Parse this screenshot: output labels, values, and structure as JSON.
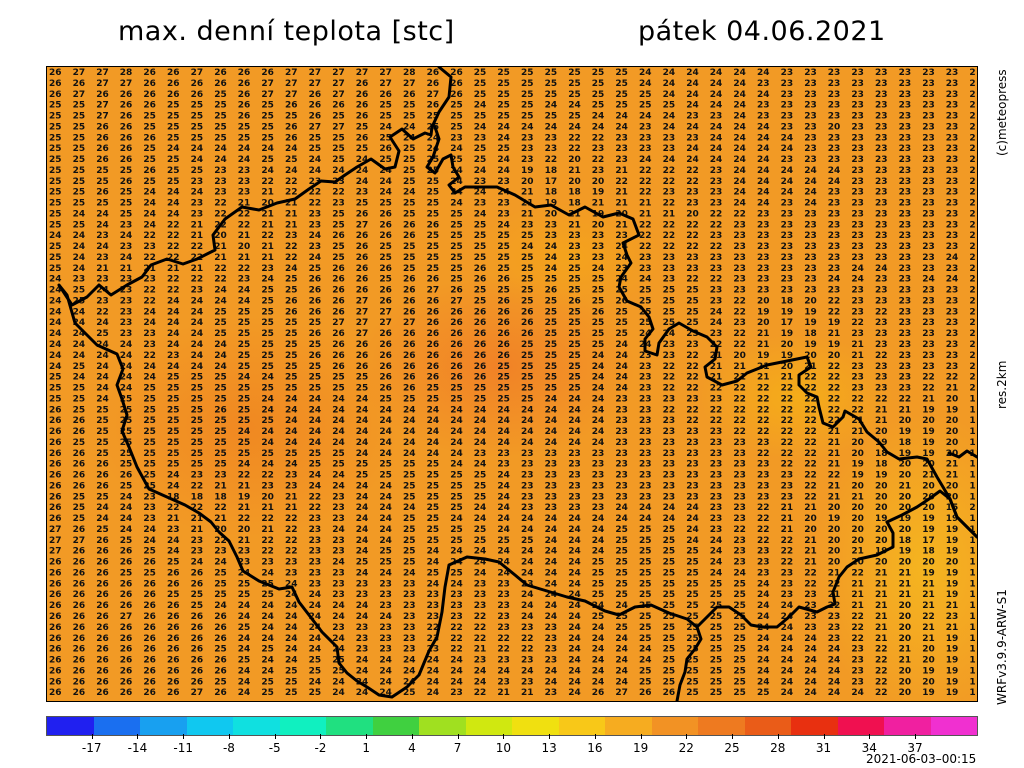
{
  "header": {
    "title": "max. denní teplota [stc]",
    "date": "pátek 04.06.2021"
  },
  "sidebar": {
    "copyright": "(c)meteopress",
    "resolution": "res.2km",
    "model": "WRFv3.9.9-ARW-S1"
  },
  "colorbar": {
    "tick_labels": [
      "-17",
      "-14",
      "-11",
      "-8",
      "-5",
      "-2",
      "1",
      "4",
      "7",
      "10",
      "13",
      "16",
      "19",
      "22",
      "25",
      "28",
      "31",
      "34",
      "37"
    ],
    "tick_values": [
      -17,
      -14,
      -11,
      -8,
      -5,
      -2,
      1,
      4,
      7,
      10,
      13,
      16,
      19,
      22,
      25,
      28,
      31,
      34,
      37
    ],
    "min": -20,
    "max": 41,
    "colors": [
      "#2020f0",
      "#1a6ff0",
      "#18a0f0",
      "#10c8f0",
      "#10e0e0",
      "#10f0c0",
      "#20e080",
      "#40d040",
      "#a0e020",
      "#d0e810",
      "#f0e010",
      "#f8c818",
      "#f6ac20",
      "#f29224",
      "#ee7a20",
      "#ea5c18",
      "#e83010",
      "#f01050",
      "#f020a0",
      "#f030d0"
    ]
  },
  "footer": {
    "timestamp": "2021-06-03–00:15"
  },
  "map": {
    "grid_rows": [
      "26 27 27 28 26 26 27 26 26 26 27 27 27 27 27 28 26 26 25 25 25 25 25 25 25 24 24 24 24 24 24 23 23 23 23 23 23 23 23 2",
      "26 26 27 27 26 26 26 26 26 27 27 27 27 26 27 27 26 26 25 25 25 25 25 25 25 24 24 24 24 24 23 23 23 23 23 23 23 23 23 2",
      "26 27 26 26 26 26 26 25 26 27 27 26 27 26 26 26 27 26 25 25 25 25 25 25 25 25 24 24 24 24 24 23 23 23 23 23 23 23 23 2",
      "25 25 27 26 26 25 25 25 26 25 26 26 26 26 25 25 26 25 24 25 25 24 24 25 25 25 25 24 24 24 23 23 23 23 23 23 23 23 23 2",
      "25 25 27 26 25 25 25 25 26 25 25 26 25 26 25 25 25 25 25 25 25 25 25 24 24 24 24 23 23 24 23 23 23 23 23 23 23 23 23 2",
      "25 25 26 26 25 25 25 25 25 25 26 27 27 25 24 24 25 25 24 24 24 24 24 24 24 23 24 24 24 24 24 23 23 20 23 23 23 23 23 2",
      "25 25 26 26 26 25 25 25 25 25 26 25 25 26 25 24 24 23 23 24 23 23 22 22 23 23 23 23 24 24 24 24 23 23 23 23 23 23 23 2",
      "25 25 26 26 25 24 24 24 24 24 24 25 25 25 26 25 24 24 25 25 23 23 22 23 23 23 23 24 24 24 24 24 23 23 23 23 23 23 23 2",
      "25 25 26 26 25 25 24 24 24 25 25 24 25 24 25 25 25 25 25 24 23 22 20 22 23 24 24 24 24 24 24 23 23 23 23 23 23 23 23 2",
      "25 25 25 25 26 25 25 23 23 24 24 24 24 24 24 25 25 24 24 24 19 18 21 23 21 22 22 22 23 24 24 24 24 24 23 23 23 23 23 2",
      "25 25 25 26 25 25 23 23 23 22 22 23 23 24 24 25 25 24 23 23 20 17 20 20 22 22 22 22 23 24 24 24 24 24 23 23 23 23 23 2",
      "25 25 26 25 24 24 24 23 23 21 22 22 22 23 24 24 25 24 24 24 21 18 18 19 21 22 23 23 23 24 24 24 24 23 23 23 23 23 23 2",
      "25 25 25 25 24 24 23 22 21 20 21 22 23 25 25 25 25 24 23 23 21 19 18 21 21 21 22 23 23 24 24 23 24 23 23 23 23 23 23 2",
      "25 24 24 25 24 24 23 22 22 21 21 23 25 26 26 25 25 25 24 23 21 20 21 19 20 21 21 20 22 22 23 23 23 23 23 23 23 23 23 2",
      "25 25 24 23 24 22 21 22 22 21 21 23 25 27 26 26 26 25 25 24 23 23 21 20 21 22 22 22 22 23 23 23 23 23 23 23 23 23 23 2",
      "24 24 23 24 22 22 21 20 21 22 23 24 26 26 26 26 25 25 25 25 25 23 23 23 23 22 22 22 23 23 23 23 23 23 23 23 23 23 23 2",
      "25 24 24 23 23 22 22 21 20 21 22 23 25 26 25 25 25 25 25 25 24 24 23 23 24 22 22 22 22 23 23 23 23 23 23 23 23 23 23 2",
      "25 24 23 24 22 22 22 21 21 21 22 24 25 26 25 25 25 25 25 25 25 24 23 23 24 23 23 23 23 23 23 23 23 23 23 23 23 23 24 2",
      "25 24 21 21 21 21 21 22 22 23 24 25 26 26 26 25 25 25 26 25 25 24 25 24 23 23 23 23 23 23 23 23 23 23 24 24 23 23 23 2",
      "24 23 23 23 23 22 22 22 23 24 25 26 26 26 25 26 26 25 26 26 25 25 25 25 24 24 23 22 22 23 23 23 23 24 24 23 23 24 24 2",
      "24 25 24 23 22 22 23 24 24 25 25 26 26 26 26 26 27 26 25 25 25 26 25 25 25 25 25 25 23 23 23 23 23 23 23 23 23 23 23 2",
      "24 25 23 23 22 24 24 24 24 25 26 26 26 27 26 26 26 27 25 26 25 25 26 25 26 25 25 25 23 22 20 18 20 22 23 23 23 23 23 2",
      "24 24 22 23 24 24 24 25 25 25 26 26 26 27 27 26 26 26 26 26 26 25 25 26 25 25 25 25 24 22 19 19 19 22 23 22 23 23 23 2",
      "24 24 24 23 24 24 24 25 25 25 25 25 27 27 27 27 26 26 26 26 26 25 25 25 25 25 25 25 24 23 20 17 19 19 22 23 23 23 23 2",
      "24 24 25 23 23 24 24 25 25 25 25 26 26 27 26 26 26 26 26 26 26 25 25 25 25 24 24 23 23 22 21 19 18 21 23 23 23 23 23 2",
      "24 24 24 24 23 24 24 24 25 25 25 25 26 26 26 26 26 26 26 26 25 25 25 25 24 24 23 23 22 22 21 20 19 19 21 23 23 23 23 2",
      "24 24 24 24 22 23 24 24 25 25 25 26 26 26 26 26 26 26 26 26 25 25 25 24 24 23 23 22 21 20 19 19 20 20 21 22 23 23 23 2",
      "24 25 24 24 24 24 24 24 25 25 25 25 26 26 26 26 26 26 26 25 25 25 25 24 24 23 22 22 21 21 21 20 21 22 23 23 23 23 23 2",
      "25 24 24 24 24 25 25 25 24 24 25 25 25 25 26 26 26 26 26 25 25 25 25 24 24 23 22 22 21 21 21 21 22 22 23 23 23 22 22 2",
      "25 25 24 24 25 25 25 25 25 25 25 25 25 25 26 26 25 25 25 25 25 25 25 24 24 23 22 22 22 22 22 22 22 22 23 23 23 22 21 2",
      "25 25 24 25 25 25 25 25 25 24 24 24 24 24 25 25 25 25 25 25 25 24 24 24 23 23 23 23 23 22 22 22 22 22 22 22 22 21 20 1",
      "26 25 25 25 25 25 25 26 25 24 24 24 24 24 24 24 24 24 24 24 24 24 24 24 23 23 22 22 22 22 22 22 22 22 22 21 21 19 19 1",
      "26 26 25 25 25 25 25 25 25 25 24 24 24 24 24 24 24 24 24 24 24 24 24 24 23 23 23 22 22 22 22 22 22 22 21 21 20 20 20 1",
      "26 26 25 25 25 25 25 25 24 24 24 24 24 24 24 24 24 24 24 24 24 24 24 24 23 23 23 23 23 22 22 22 22 21 21 20 19 19 20 1",
      "26 25 25 25 25 25 25 25 25 24 24 24 24 24 24 24 24 24 24 24 24 24 24 24 23 23 23 23 23 23 23 22 22 21 20 19 18 19 20 1",
      "26 26 25 25 25 25 25 25 25 25 25 25 25 24 24 24 24 24 23 23 23 23 23 23 23 23 23 23 23 23 22 22 22 21 20 18 19 19 20 1",
      "26 26 26 25 25 25 25 25 24 24 24 25 25 25 25 25 25 24 24 23 23 23 23 23 23 23 23 23 23 23 23 22 22 21 19 18 20 20 21 1",
      "26 26 26 26 25 24 23 23 22 22 23 24 24 25 25 25 25 25 25 24 23 23 23 23 23 23 23 23 23 23 23 23 22 22 19 19 20 21 21 1",
      "26 26 26 25 25 24 22 21 21 23 23 24 24 24 24 25 25 25 25 24 23 23 23 23 23 23 23 23 23 23 23 23 22 21 20 20 21 20 20 1",
      "26 25 25 24 23 18 18 18 19 20 21 22 23 24 24 25 25 25 25 24 23 23 23 23 23 23 23 23 23 23 23 23 22 21 21 20 20 20 20 1",
      "26 25 24 24 23 22 22 22 21 21 21 22 23 24 24 24 25 25 24 24 23 23 23 23 24 24 24 24 23 23 22 21 21 20 20 20 20 20 15 2",
      "26 25 24 24 23 21 21 21 22 22 22 23 23 24 24 25 25 24 24 24 24 24 24 24 24 24 24 24 23 23 22 21 20 19 20 19 19 19 19 1",
      "27 26 25 24 24 23 21 20 20 21 22 23 24 24 24 25 25 25 25 24 24 24 24 24 25 25 25 24 23 22 22 21 20 20 20 20 20 19 19 1",
      "27 27 26 25 24 24 23 22 21 22 22 23 23 24 24 25 25 25 25 25 25 24 24 24 25 25 25 24 24 23 22 22 21 20 20 20 18 17 19 1",
      "27 26 26 26 25 24 23 23 23 22 22 23 23 24 25 25 24 24 24 24 24 24 24 24 25 25 25 25 24 23 23 22 21 20 21 19 19 18 19 1",
      "26 26 26 26 26 25 24 24 23 23 23 23 24 25 25 25 24 24 24 24 24 24 24 25 25 25 25 25 24 23 23 22 21 20 20 20 20 20 20 1",
      "26 26 26 25 25 26 26 25 24 24 23 23 23 24 24 24 25 25 24 24 24 24 24 25 25 25 25 25 24 24 23 23 22 21 22 21 21 19 19 1",
      "26 26 26 26 26 26 26 25 25 25 24 23 23 23 23 23 24 24 23 23 23 24 24 25 25 25 25 25 25 25 24 23 22 22 21 21 21 21 19 1",
      "26 26 26 26 26 25 25 25 25 25 24 24 23 23 23 23 23 23 23 23 24 24 24 25 25 25 25 25 25 25 24 23 23 21 21 21 21 21 19 1",
      "26 26 26 26 26 26 25 24 24 24 24 24 24 24 23 23 23 23 23 23 24 24 24 24 24 25 25 25 25 25 24 24 23 22 21 21 20 21 21 1",
      "26 26 26 27 26 26 26 26 24 24 24 24 24 24 24 23 23 23 22 23 24 24 24 25 25 25 25 25 25 25 24 24 23 23 22 21 20 22 23 1",
      "26 26 26 26 26 26 26 26 25 24 24 24 23 23 23 23 22 22 22 23 23 23 24 24 25 25 25 25 25 25 24 24 23 23 22 21 20 21 21 1",
      "26 26 26 26 26 26 26 26 24 24 24 24 24 23 23 23 23 22 22 22 22 23 24 24 24 25 25 25 25 25 24 24 24 23 22 21 20 21 19 1",
      "26 26 26 26 26 26 26 25 24 25 24 24 24 23 23 23 23 22 21 22 22 23 24 24 24 24 25 25 25 25 24 24 24 24 23 22 21 20 19 1",
      "26 26 26 26 26 26 26 26 25 24 24 25 25 24 24 24 24 24 23 23 23 23 24 24 24 24 25 25 25 25 24 24 24 24 23 22 21 20 19 1",
      "26 26 26 26 26 26 26 26 24 24 25 25 25 24 24 24 24 24 24 24 24 24 24 24 24 25 25 25 25 25 24 24 24 24 23 22 20 19 19 1",
      "26 26 26 26 26 26 26 25 24 25 25 24 24 24 24 24 24 24 24 23 23 24 24 24 24 25 25 25 25 25 24 24 24 24 23 22 20 20 19 1",
      "26 26 26 26 26 26 27 26 24 25 25 25 24 24 24 25 24 23 22 21 21 23 24 26 27 26 26 25 25 25 25 24 24 24 24 22 20 19 19 1"
    ]
  }
}
